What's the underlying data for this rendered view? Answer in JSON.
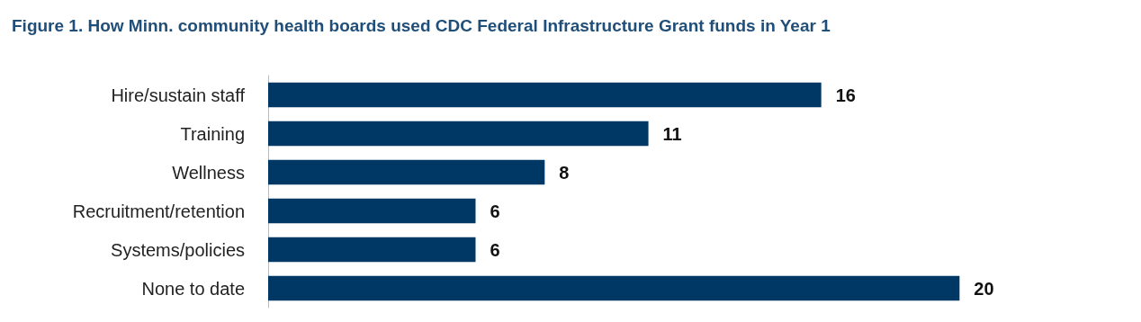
{
  "chart_data": {
    "type": "bar",
    "orientation": "horizontal",
    "title": "Figure 1. How Minn. community health boards used CDC Federal Infrastructure Grant funds in Year 1",
    "categories": [
      "Hire/sustain staff",
      "Training",
      "Wellness",
      "Recruitment/retention",
      "Systems/policies",
      "None to date"
    ],
    "values": [
      16,
      11,
      8,
      6,
      6,
      20
    ],
    "color": "#003865",
    "data_labels": true
  }
}
